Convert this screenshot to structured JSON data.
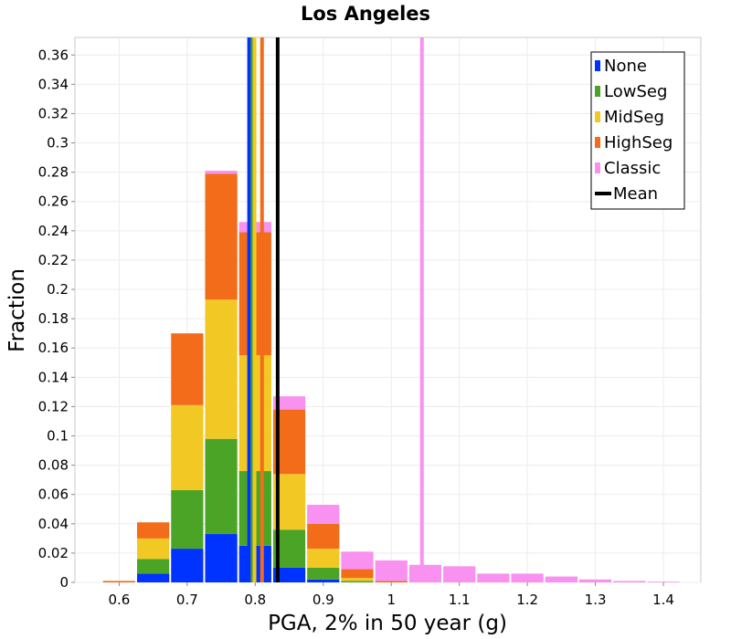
{
  "chart_data": {
    "type": "bar",
    "stacked": true,
    "title": "Los Angeles",
    "xlabel": "PGA, 2% in 50 year (g)",
    "ylabel": "Fraction",
    "xlim": [
      0.535,
      1.455
    ],
    "ylim": [
      0,
      0.372
    ],
    "x_ticks": [
      0.6,
      0.7,
      0.8,
      0.9,
      1,
      1.1,
      1.2,
      1.3,
      1.4
    ],
    "x_tick_labels": [
      "0.6",
      "0.7",
      "0.8",
      "0.9",
      "1",
      "1.1",
      "1.2",
      "1.3",
      "1.4"
    ],
    "y_ticks": [
      0,
      0.02,
      0.04,
      0.06,
      0.08,
      0.1,
      0.12,
      0.14,
      0.16,
      0.18,
      0.2,
      0.22,
      0.24,
      0.26,
      0.28,
      0.3,
      0.32,
      0.34,
      0.36
    ],
    "y_tick_labels": [
      "0",
      "0.02",
      "0.04",
      "0.06",
      "0.08",
      "0.1",
      "0.12",
      "0.14",
      "0.16",
      "0.18",
      "0.2",
      "0.22",
      "0.24",
      "0.26",
      "0.28",
      "0.3",
      "0.32",
      "0.34",
      "0.36"
    ],
    "grid": true,
    "legend_position": "top-right",
    "bin_width": 0.05,
    "bins": [
      0.6,
      0.65,
      0.7,
      0.75,
      0.8,
      0.85,
      0.9,
      0.95,
      1.0,
      1.05,
      1.1,
      1.15,
      1.2,
      1.25,
      1.3,
      1.35,
      1.4
    ],
    "series": [
      {
        "name": "None",
        "color": "#0033ff",
        "values": [
          0,
          0.006,
          0.023,
          0.033,
          0.025,
          0.01,
          0.002,
          0,
          0,
          0,
          0,
          0,
          0,
          0,
          0,
          0,
          0
        ]
      },
      {
        "name": "LowSeg",
        "color": "#4ca427",
        "values": [
          0,
          0.01,
          0.04,
          0.065,
          0.051,
          0.026,
          0.008,
          0.001,
          0,
          0,
          0,
          0,
          0,
          0,
          0,
          0,
          0
        ]
      },
      {
        "name": "MidSeg",
        "color": "#f2c824",
        "values": [
          0,
          0.014,
          0.058,
          0.095,
          0.079,
          0.038,
          0.013,
          0.002,
          0,
          0,
          0,
          0,
          0,
          0,
          0,
          0,
          0
        ]
      },
      {
        "name": "HighSeg",
        "color": "#f26c19",
        "values": [
          0.001,
          0.011,
          0.049,
          0.086,
          0.084,
          0.044,
          0.017,
          0.006,
          0.001,
          0,
          0,
          0,
          0,
          0,
          0,
          0,
          0
        ]
      },
      {
        "name": "Classic",
        "color": "#f891f0",
        "values": [
          0,
          0,
          0,
          0.002,
          0.007,
          0.009,
          0.013,
          0.012,
          0.014,
          0.012,
          0.011,
          0.006,
          0.006,
          0.004,
          0.002,
          0.001,
          0.0005
        ]
      }
    ],
    "vertical_lines": [
      {
        "name": "None mean",
        "x": 0.791,
        "color": "#0033ff"
      },
      {
        "name": "LowSeg mean",
        "x": 0.796,
        "color": "#4ca427"
      },
      {
        "name": "MidSeg mean",
        "x": 0.799,
        "color": "#f2c824"
      },
      {
        "name": "HighSeg mean",
        "x": 0.81,
        "color": "#f26c19"
      },
      {
        "name": "Classic mean",
        "x": 1.045,
        "color": "#f891f0"
      },
      {
        "name": "Mean",
        "x": 0.833,
        "color": "#000000"
      }
    ],
    "legend": [
      {
        "label": "None",
        "color": "#0033ff",
        "kind": "box"
      },
      {
        "label": "LowSeg",
        "color": "#4ca427",
        "kind": "box"
      },
      {
        "label": "MidSeg",
        "color": "#f2c824",
        "kind": "box"
      },
      {
        "label": "HighSeg",
        "color": "#f26c19",
        "kind": "box"
      },
      {
        "label": "Classic",
        "color": "#f891f0",
        "kind": "box"
      },
      {
        "label": "Mean",
        "color": "#000000",
        "kind": "line"
      }
    ]
  }
}
